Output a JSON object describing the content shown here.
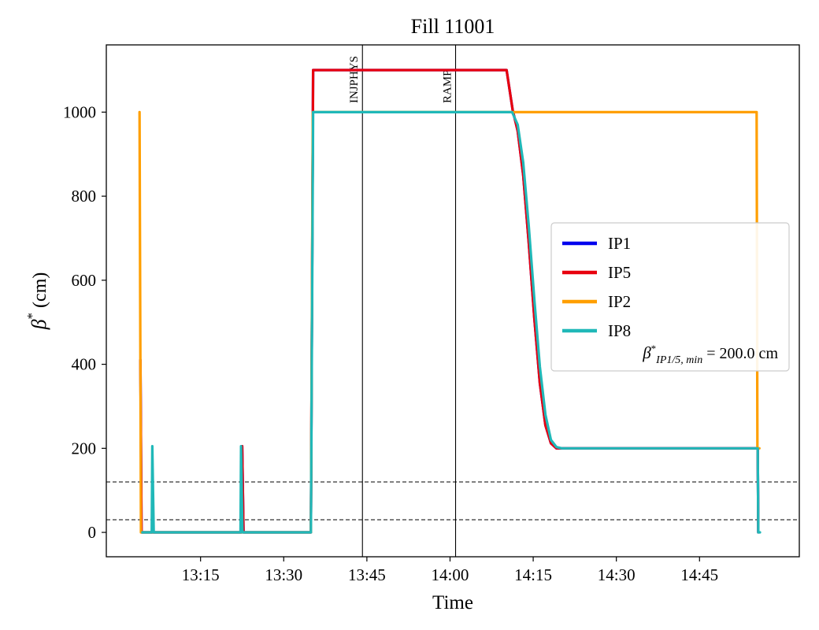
{
  "figure": {
    "title": "Fill 11001"
  },
  "chart_data": {
    "type": "line",
    "title": "Fill 11001",
    "xlabel": "Time",
    "ylabel_parts": {
      "base": "β",
      "sup": "*",
      "rest": " (cm)"
    },
    "x_unit": "minutes after 13:00",
    "xlim": [
      -2,
      123
    ],
    "ylim": [
      -58,
      1160
    ],
    "grid": false,
    "x_ticks": [
      {
        "value": 15,
        "label": "13:15"
      },
      {
        "value": 30,
        "label": "13:30"
      },
      {
        "value": 45,
        "label": "13:45"
      },
      {
        "value": 60,
        "label": "14:00"
      },
      {
        "value": 75,
        "label": "14:15"
      },
      {
        "value": 90,
        "label": "14:30"
      },
      {
        "value": 105,
        "label": "14:45"
      }
    ],
    "y_ticks": [
      {
        "value": 0,
        "label": "0"
      },
      {
        "value": 200,
        "label": "200"
      },
      {
        "value": 400,
        "label": "400"
      },
      {
        "value": 600,
        "label": "600"
      },
      {
        "value": 800,
        "label": "800"
      },
      {
        "value": 1000,
        "label": "1000"
      }
    ],
    "hlines": [
      {
        "y": 120,
        "color": "#000000",
        "style": "dashed"
      },
      {
        "y": 30,
        "color": "#000000",
        "style": "dashed"
      }
    ],
    "vlines": [
      {
        "x": 44.2,
        "label": "INJPHYS",
        "color": "#000000"
      },
      {
        "x": 61.0,
        "label": "RAMP",
        "color": "#000000"
      }
    ],
    "series": [
      {
        "name": "IP1",
        "color": "#0000ee",
        "points": [
          [
            4.15,
            410
          ],
          [
            4.35,
            0
          ],
          [
            22.4,
            0
          ],
          [
            22.5,
            205
          ],
          [
            22.75,
            0
          ],
          [
            34.9,
            0
          ],
          [
            35.3,
            1100
          ],
          [
            70.2,
            1100
          ],
          [
            71.3,
            1005
          ],
          [
            72.2,
            955
          ],
          [
            73.2,
            850
          ],
          [
            74.2,
            690
          ],
          [
            75.2,
            510
          ],
          [
            76.2,
            355
          ],
          [
            77.2,
            255
          ],
          [
            78.2,
            212
          ],
          [
            79.2,
            200
          ],
          [
            115.5,
            200
          ],
          [
            115.6,
            0
          ]
        ]
      },
      {
        "name": "IP5",
        "color": "#e8000e",
        "points": [
          [
            4.15,
            410
          ],
          [
            4.35,
            0
          ],
          [
            22.4,
            0
          ],
          [
            22.5,
            205
          ],
          [
            22.75,
            0
          ],
          [
            34.9,
            0
          ],
          [
            35.3,
            1100
          ],
          [
            70.2,
            1100
          ],
          [
            71.3,
            1005
          ],
          [
            72.2,
            955
          ],
          [
            73.2,
            850
          ],
          [
            74.2,
            690
          ],
          [
            75.2,
            510
          ],
          [
            76.2,
            355
          ],
          [
            77.2,
            255
          ],
          [
            78.2,
            212
          ],
          [
            79.2,
            200
          ],
          [
            115.5,
            200
          ],
          [
            115.6,
            0
          ]
        ]
      },
      {
        "name": "IP2",
        "color": "#ff9f00",
        "points": [
          [
            4.0,
            1000
          ],
          [
            4.25,
            0
          ],
          [
            34.9,
            0
          ],
          [
            35.25,
            1000
          ],
          [
            115.3,
            1000
          ],
          [
            115.45,
            200
          ],
          [
            115.8,
            200
          ]
        ]
      },
      {
        "name": "IP8",
        "color": "#20b8b8",
        "points": [
          [
            4.5,
            0
          ],
          [
            6.2,
            0
          ],
          [
            6.3,
            205
          ],
          [
            6.55,
            0
          ],
          [
            22.2,
            0
          ],
          [
            22.3,
            205
          ],
          [
            22.55,
            0
          ],
          [
            34.9,
            0
          ],
          [
            35.3,
            1000
          ],
          [
            71.2,
            1000
          ],
          [
            72.2,
            970
          ],
          [
            73.2,
            880
          ],
          [
            74.2,
            730
          ],
          [
            75.2,
            555
          ],
          [
            76.2,
            395
          ],
          [
            77.2,
            280
          ],
          [
            78.2,
            220
          ],
          [
            79.2,
            203
          ],
          [
            80.2,
            200
          ],
          [
            115.5,
            200
          ],
          [
            115.6,
            0
          ],
          [
            115.9,
            0
          ]
        ]
      }
    ],
    "legend": {
      "position": "center right",
      "entries": [
        "IP1",
        "IP5",
        "IP2",
        "IP8"
      ],
      "note_parts": {
        "base": "β",
        "sup": "*",
        "sub": "IP1/5, min",
        "rest": " = 200.0 cm"
      }
    }
  }
}
